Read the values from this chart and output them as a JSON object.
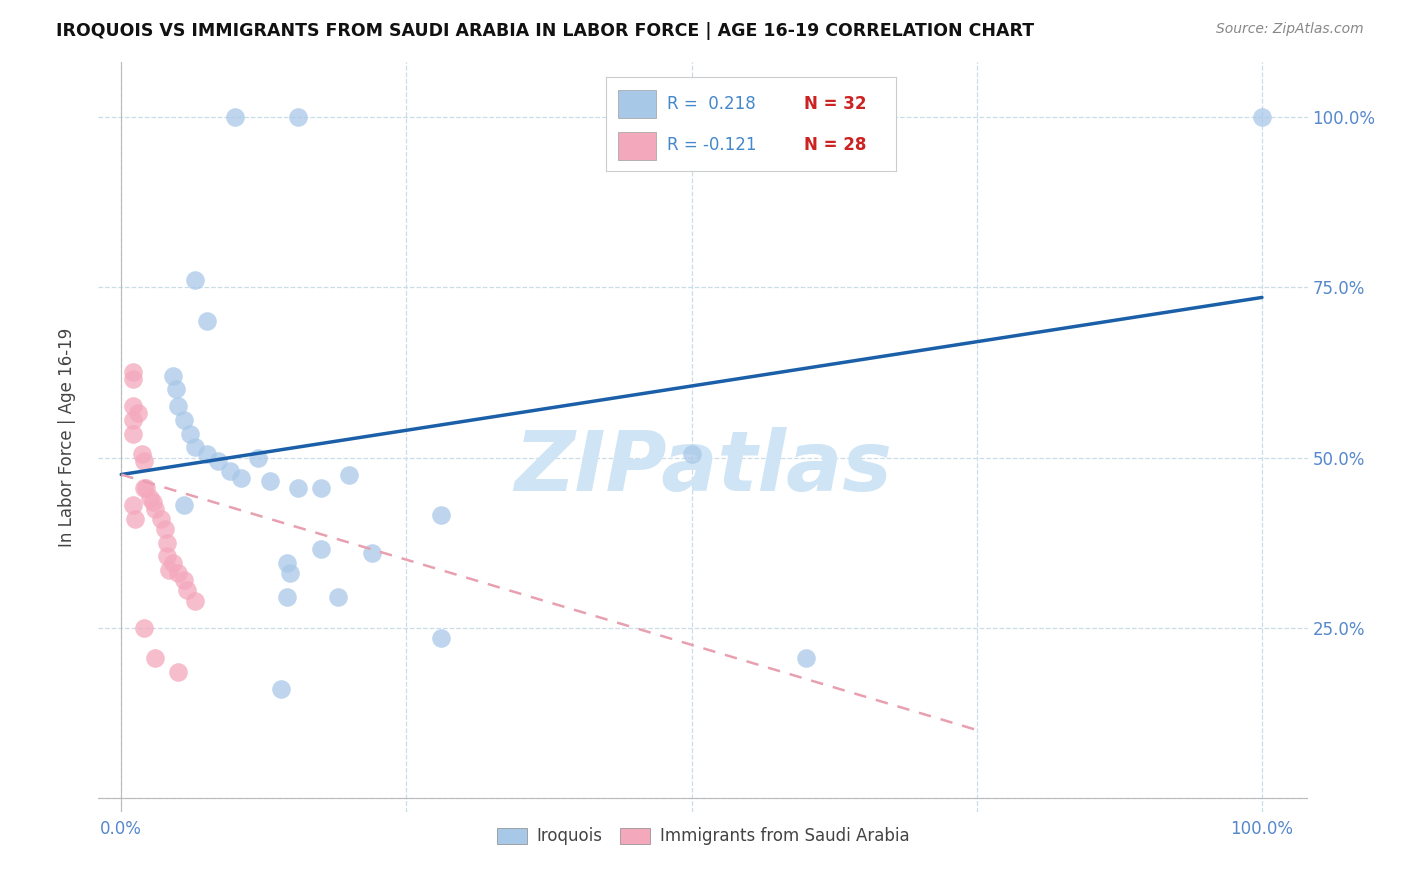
{
  "title": "IROQUOIS VS IMMIGRANTS FROM SAUDI ARABIA IN LABOR FORCE | AGE 16-19 CORRELATION CHART",
  "source": "Source: ZipAtlas.com",
  "ylabel": "In Labor Force | Age 16-19",
  "blue_color": "#a8c8e8",
  "pink_color": "#f4a8bc",
  "blue_line_color": "#1a5fa8",
  "pink_line_color": "#e8a0b0",
  "tick_color": "#5588cc",
  "grid_color": "#c8dde8",
  "watermark_color": "#cfe4f4",
  "legend_r_color": "#4488cc",
  "legend_n_color": "#cc2222",
  "iroquois_x": [
    0.1,
    0.155,
    0.065,
    0.075,
    0.045,
    0.048,
    0.05,
    0.055,
    0.06,
    0.065,
    0.075,
    0.085,
    0.095,
    0.105,
    0.12,
    0.13,
    0.155,
    0.175,
    0.2,
    0.175,
    0.22,
    0.145,
    0.148,
    0.145,
    0.19,
    0.28,
    0.5,
    0.6,
    1.0,
    0.055,
    0.14,
    0.28
  ],
  "iroquois_y": [
    1.0,
    1.0,
    0.76,
    0.7,
    0.62,
    0.6,
    0.575,
    0.555,
    0.535,
    0.515,
    0.505,
    0.495,
    0.48,
    0.47,
    0.5,
    0.465,
    0.455,
    0.455,
    0.475,
    0.365,
    0.36,
    0.345,
    0.33,
    0.295,
    0.295,
    0.415,
    0.505,
    0.205,
    1.0,
    0.43,
    0.16,
    0.235
  ],
  "saudi_x": [
    0.01,
    0.01,
    0.01,
    0.01,
    0.015,
    0.018,
    0.02,
    0.02,
    0.022,
    0.025,
    0.028,
    0.03,
    0.035,
    0.038,
    0.04,
    0.04,
    0.042,
    0.045,
    0.05,
    0.055,
    0.058,
    0.065,
    0.01,
    0.02,
    0.03,
    0.05,
    0.01,
    0.012
  ],
  "saudi_y": [
    0.575,
    0.555,
    0.535,
    0.615,
    0.565,
    0.505,
    0.495,
    0.455,
    0.455,
    0.44,
    0.435,
    0.425,
    0.41,
    0.395,
    0.375,
    0.355,
    0.335,
    0.345,
    0.33,
    0.32,
    0.305,
    0.29,
    0.625,
    0.25,
    0.205,
    0.185,
    0.43,
    0.41
  ],
  "blue_trend_x0": 0.0,
  "blue_trend_x1": 1.0,
  "blue_trend_y0": 0.475,
  "blue_trend_y1": 0.735,
  "pink_trend_x0": 0.0,
  "pink_trend_x1": 0.75,
  "pink_trend_y0": 0.475,
  "pink_trend_y1": 0.1,
  "xlim_min": -0.02,
  "xlim_max": 1.04,
  "ylim_min": -0.02,
  "ylim_max": 1.08,
  "legend_blue_r": "R =  0.218",
  "legend_blue_n": "N = 32",
  "legend_pink_r": "R = -0.121",
  "legend_pink_n": "N = 28",
  "legend_label_blue": "Iroquois",
  "legend_label_pink": "Immigrants from Saudi Arabia"
}
